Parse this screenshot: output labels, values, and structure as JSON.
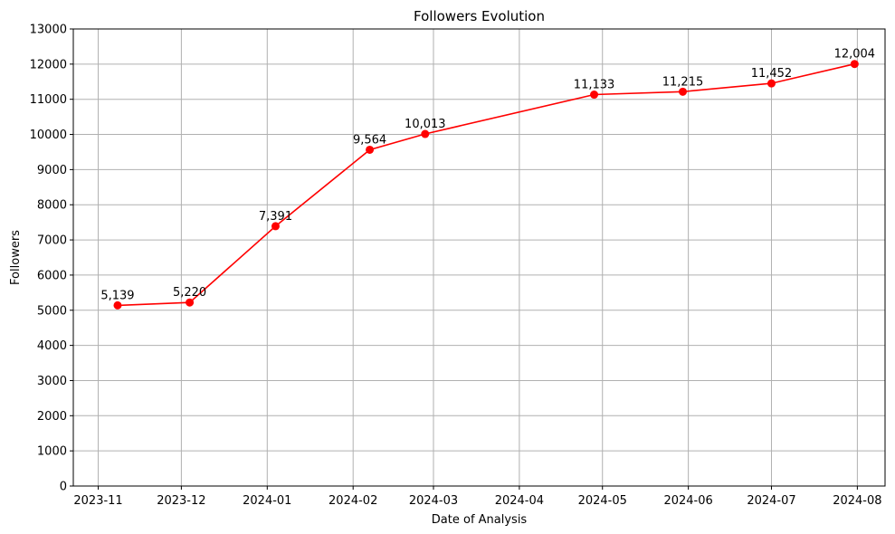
{
  "chart_data": {
    "type": "line",
    "title": "Followers Evolution",
    "xlabel": "Date of Analysis",
    "ylabel": "Followers",
    "x_type": "date",
    "xlim": [
      "2023-10-23",
      "2024-08-11"
    ],
    "ylim": [
      0,
      13000
    ],
    "x_ticks": [
      "2023-11",
      "2023-12",
      "2024-01",
      "2024-02",
      "2024-03",
      "2024-04",
      "2024-05",
      "2024-06",
      "2024-07",
      "2024-08"
    ],
    "x_tick_dates": [
      "2023-11-01",
      "2023-12-01",
      "2024-01-01",
      "2024-02-01",
      "2024-03-01",
      "2024-04-01",
      "2024-05-01",
      "2024-06-01",
      "2024-07-01",
      "2024-08-01"
    ],
    "y_ticks": [
      0,
      1000,
      2000,
      3000,
      4000,
      5000,
      6000,
      7000,
      8000,
      9000,
      10000,
      11000,
      12000,
      13000
    ],
    "y_tick_labels": [
      "0",
      "1000",
      "2000",
      "3000",
      "4000",
      "5000",
      "6000",
      "7000",
      "8000",
      "9000",
      "10000",
      "11000",
      "12000",
      "13000"
    ],
    "grid": true,
    "series": [
      {
        "color": "#ff0000",
        "marker": "circle",
        "x": [
          "2023-11-08",
          "2023-12-04",
          "2024-01-04",
          "2024-02-07",
          "2024-02-27",
          "2024-04-28",
          "2024-05-30",
          "2024-07-01",
          "2024-07-31"
        ],
        "values": [
          5139,
          5220,
          7391,
          9564,
          10013,
          11133,
          11215,
          11452,
          12004
        ],
        "labels": [
          "5,139",
          "5,220",
          "7,391",
          "9,564",
          "10,013",
          "11,133",
          "11,215",
          "11,452",
          "12,004"
        ]
      }
    ]
  }
}
